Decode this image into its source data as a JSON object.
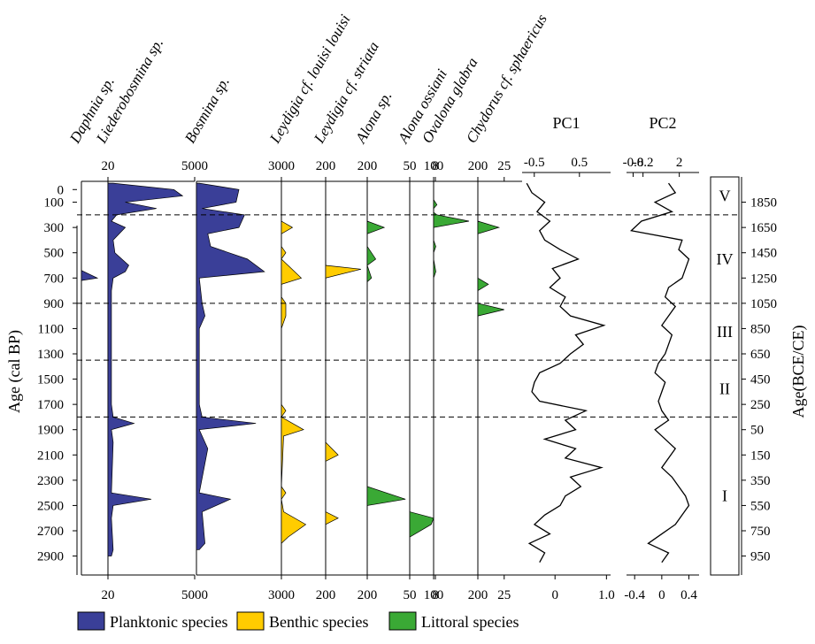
{
  "chart_data": {
    "type": "stratigraphic",
    "y_label": "Age (cal BP)",
    "y2_label": "Age(BCE/CE)",
    "ylim": [
      -100,
      3050
    ],
    "yticks": [
      0,
      100,
      300,
      500,
      700,
      900,
      1100,
      1300,
      1500,
      1700,
      1900,
      2100,
      2300,
      2500,
      2700,
      2900
    ],
    "y2lim": [
      2050,
      -1100
    ],
    "y2ticks": [
      1850,
      1650,
      1450,
      1250,
      1050,
      850,
      650,
      450,
      250,
      50,
      {
        "value": -150,
        "label": "150"
      },
      {
        "value": -350,
        "label": "350"
      },
      {
        "value": -550,
        "label": "550"
      },
      {
        "value": -750,
        "label": "750"
      },
      {
        "value": -950,
        "label": "950"
      }
    ],
    "groups": [
      {
        "name": "Planktonic species",
        "color": "#3a3f98"
      },
      {
        "name": "Benthic species",
        "color": "#ffcc00"
      },
      {
        "name": "Littoral species",
        "color": "#3aa935"
      }
    ],
    "panels": [
      {
        "name": "Daphnia sp.",
        "group": 0,
        "xlim": [
          0,
          20
        ],
        "xticks": [
          20
        ],
        "ages": [
          640,
          700,
          720
        ],
        "values": [
          0,
          12,
          0
        ]
      },
      {
        "name": "Liederobosmina sp.",
        "group": 0,
        "xlim": [
          0,
          5000
        ],
        "xticks": [
          5000
        ],
        "ages": [
          -50,
          0,
          50,
          100,
          150,
          200,
          250,
          300,
          400,
          500,
          600,
          650,
          700,
          800,
          900,
          1100,
          1700,
          1800,
          1850,
          1900,
          2000,
          2400,
          2450,
          2500,
          2600,
          2850,
          2900
        ],
        "values": [
          300,
          3800,
          4300,
          1000,
          2800,
          500,
          200,
          1000,
          300,
          400,
          1200,
          1000,
          300,
          200,
          200,
          200,
          200,
          300,
          1500,
          200,
          300,
          200,
          2500,
          300,
          200,
          300,
          200
        ]
      },
      {
        "name": "Bosmina sp.",
        "group": 0,
        "xlim": [
          0,
          3000
        ],
        "xticks": [
          3000
        ],
        "ages": [
          -50,
          0,
          100,
          150,
          200,
          300,
          350,
          450,
          550,
          650,
          700,
          900,
          1000,
          1100,
          1700,
          1800,
          1850,
          1900,
          2050,
          2400,
          2450,
          2550,
          2800,
          2850
        ],
        "values": [
          100,
          1500,
          1400,
          200,
          1700,
          1500,
          400,
          500,
          1800,
          2400,
          100,
          200,
          300,
          100,
          100,
          200,
          2100,
          100,
          400,
          100,
          1200,
          200,
          300,
          100
        ]
      },
      {
        "name": "Leydigia cf. louisi louisi",
        "group": 1,
        "xlim": [
          0,
          200
        ],
        "xticks": [
          200
        ],
        "ages": [
          250,
          300,
          350,
          450,
          500,
          550,
          600,
          700,
          750,
          850,
          900,
          1000,
          1100,
          1700,
          1750,
          1800,
          1900,
          1950,
          2350,
          2400,
          2450,
          2550,
          2650,
          2750,
          2800
        ],
        "values": [
          0,
          50,
          0,
          0,
          20,
          0,
          30,
          90,
          0,
          0,
          20,
          20,
          0,
          0,
          20,
          0,
          100,
          10,
          0,
          20,
          0,
          10,
          110,
          30,
          0
        ]
      },
      {
        "name": "Leydigia cf. striata",
        "group": 1,
        "xlim": [
          0,
          200
        ],
        "xticks": [
          200
        ],
        "ages": [
          600,
          630,
          700,
          2000,
          2100,
          2150,
          2550,
          2600,
          2650
        ],
        "values": [
          0,
          170,
          0,
          0,
          60,
          0,
          0,
          60,
          0
        ]
      },
      {
        "name": "Alona sp.",
        "group": 2,
        "xlim": [
          0,
          50
        ],
        "xticks": [
          50
        ],
        "ages": [
          250,
          300,
          350,
          450,
          550,
          600,
          700,
          730,
          750,
          2350,
          2450,
          2500
        ],
        "values": [
          0,
          20,
          0,
          0,
          10,
          0,
          5,
          0,
          0,
          0,
          45,
          0
        ]
      },
      {
        "name": "Alona ossiani",
        "group": 2,
        "xlim": [
          0,
          100
        ],
        "xticks": [
          100
        ],
        "ages": [
          2550,
          2600,
          2650,
          2750
        ],
        "values": [
          0,
          100,
          90,
          0
        ]
      },
      {
        "name": "Ovalona glabra",
        "group": 2,
        "xlim": [
          0,
          200
        ],
        "xticks": [
          8,
          200
        ],
        "ages": [
          80,
          120,
          150,
          180,
          200,
          250,
          300,
          400,
          450,
          500,
          550,
          650,
          700,
          750
        ],
        "values": [
          0,
          15,
          0,
          0,
          15,
          160,
          0,
          0,
          10,
          0,
          0,
          10,
          0,
          0
        ]
      },
      {
        "name": "Chydorus cf. sphaericus",
        "group": 2,
        "xlim": [
          0,
          42
        ],
        "xticks": [
          25
        ],
        "ages": [
          250,
          300,
          350,
          700,
          750,
          800,
          900,
          950,
          1000
        ],
        "values": [
          0,
          20,
          0,
          0,
          10,
          0,
          0,
          25,
          0
        ]
      }
    ],
    "pcs": [
      {
        "name": "PC1",
        "xlim": [
          -0.64,
          1.08
        ],
        "xticks": [
          0,
          {
            "value": 1,
            "label": "1.0"
          }
        ],
        "top_xlim": [
          -0.77,
          1.19
        ],
        "top_xticks": [
          -0.5,
          0.5
        ],
        "ages": [
          -50,
          25,
          100,
          175,
          250,
          325,
          400,
          475,
          550,
          625,
          700,
          775,
          850,
          925,
          1000,
          1075,
          1150,
          1225,
          1300,
          1375,
          1450,
          1525,
          1600,
          1675,
          1750,
          1825,
          1900,
          1975,
          2050,
          2125,
          2200,
          2275,
          2350,
          2425,
          2500,
          2575,
          2650,
          2725,
          2800,
          2875,
          2950
        ],
        "values": [
          -0.55,
          -0.45,
          -0.2,
          -0.35,
          -0.1,
          -0.3,
          -0.2,
          0.1,
          0.45,
          -0.05,
          0.1,
          -0.1,
          0.2,
          0.1,
          0.3,
          0.95,
          0.4,
          0.55,
          0.3,
          0.1,
          -0.3,
          -0.4,
          -0.45,
          -0.3,
          0.6,
          0.2,
          0.4,
          -0.2,
          0.4,
          0.2,
          0.9,
          0.3,
          0.5,
          0.2,
          0.1,
          -0.2,
          -0.4,
          -0.1,
          -0.5,
          -0.2,
          -0.3
        ]
      },
      {
        "name": "PC2",
        "xlim": [
          -0.52,
          0.55
        ],
        "xticks": [
          -0.4,
          0,
          0.4
        ],
        "top_xlim": [
          -1.2,
          3.2
        ],
        "top_xticks": [
          -0.8,
          -0.2,
          2
        ],
        "ages": [
          -50,
          25,
          100,
          175,
          250,
          325,
          400,
          475,
          550,
          625,
          700,
          775,
          850,
          925,
          1000,
          1075,
          1150,
          1225,
          1300,
          1375,
          1450,
          1525,
          1600,
          1675,
          1750,
          1825,
          1900,
          1975,
          2050,
          2125,
          2200,
          2275,
          2350,
          2425,
          2500,
          2575,
          2650,
          2725,
          2800,
          2875,
          2950
        ],
        "values": [
          0.1,
          0.2,
          -0.1,
          0.15,
          -0.3,
          -0.45,
          0.3,
          0.25,
          0.4,
          0.35,
          0.3,
          0.1,
          0.05,
          0.2,
          0.1,
          0,
          0.15,
          0.1,
          0.05,
          -0.05,
          -0.1,
          0.05,
          0,
          -0.05,
          0,
          0.1,
          -0.1,
          0.05,
          0.2,
          0.1,
          0,
          0.15,
          0.25,
          0.35,
          0.4,
          0.3,
          0.2,
          0,
          -0.2,
          0.1,
          0
        ]
      }
    ],
    "zones": {
      "boundaries": [
        200,
        900,
        1350,
        1800
      ],
      "labels": [
        "V",
        "IV",
        "III",
        "II",
        "I"
      ]
    }
  }
}
